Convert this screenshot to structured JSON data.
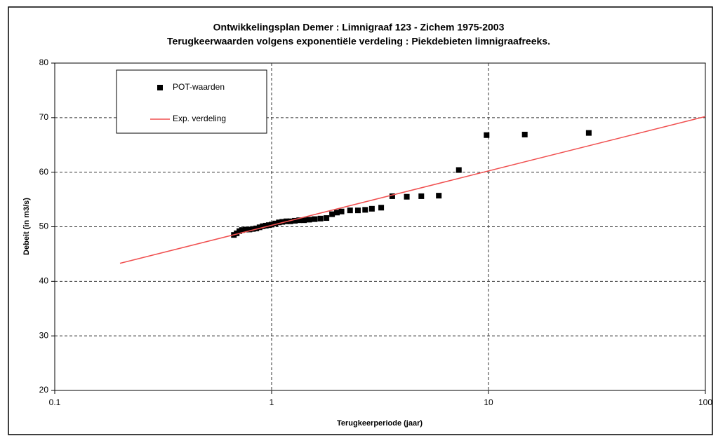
{
  "chart_data": {
    "type": "scatter",
    "title": "Ontwikkelingsplan Demer : Limnigraaf 123 - Zichem 1975-2003",
    "subtitle": "Terugkeerwaarden volgens exponentiële verdeling : Piekdebieten limnigraafreeks.",
    "xlabel": "Terugkeerperiode (jaar)",
    "ylabel": "Debeit (in m3/s)",
    "xscale": "log",
    "xlim": [
      0.1,
      100
    ],
    "xticks": [
      0.1,
      1,
      10,
      100
    ],
    "ylim": [
      20,
      80
    ],
    "yticks": [
      20,
      30,
      40,
      50,
      60,
      70,
      80
    ],
    "grid": true,
    "legend": "upper left",
    "series": [
      {
        "name": "POT-waarden",
        "type": "scatter",
        "color": "#000000",
        "x": [
          0.67,
          0.69,
          0.71,
          0.73,
          0.76,
          0.79,
          0.82,
          0.85,
          0.88,
          0.91,
          0.94,
          0.97,
          1.0,
          1.04,
          1.08,
          1.12,
          1.17,
          1.22,
          1.28,
          1.34,
          1.41,
          1.49,
          1.58,
          1.68,
          1.79,
          1.9,
          2.0,
          2.1,
          2.3,
          2.5,
          2.7,
          2.9,
          3.2,
          3.6,
          4.2,
          4.9,
          5.9,
          7.3,
          9.8,
          14.7,
          29.0
        ],
        "values": [
          48.5,
          48.8,
          49.2,
          49.4,
          49.5,
          49.5,
          49.6,
          49.7,
          49.9,
          50.1,
          50.2,
          50.3,
          50.4,
          50.6,
          50.8,
          50.9,
          51.0,
          51.0,
          51.1,
          51.2,
          51.2,
          51.3,
          51.4,
          51.5,
          51.6,
          52.3,
          52.6,
          52.8,
          53.0,
          53.0,
          53.1,
          53.3,
          53.5,
          55.6,
          55.5,
          55.6,
          55.7,
          60.4,
          66.8,
          66.9,
          67.2
        ]
      },
      {
        "name": "Exp. verdeling",
        "type": "line",
        "color": "#f05050",
        "x": [
          0.2,
          100
        ],
        "values": [
          43.3,
          70.2
        ]
      }
    ]
  }
}
